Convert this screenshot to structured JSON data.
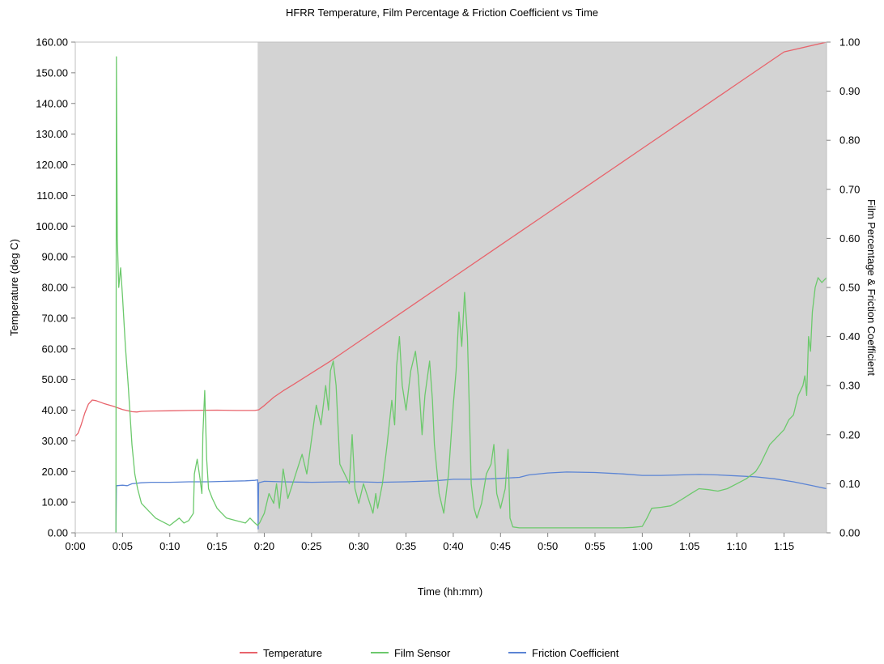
{
  "chart_data": {
    "type": "line",
    "title": "HFRR Temperature, Film Percentage & Friction Coefficient vs Time",
    "xlabel": "Time (hh:mm)",
    "ylabel_left": "Temperature (deg C)",
    "ylabel_right": "Film Percentage & Friction Coefficient",
    "x_unit": "minutes",
    "xlim": [
      0,
      79.5
    ],
    "ylim_left": [
      0,
      160
    ],
    "ylim_right": [
      0,
      1
    ],
    "x_tick_labels": [
      "0:00",
      "0:05",
      "0:10",
      "0:15",
      "0:20",
      "0:25",
      "0:30",
      "0:35",
      "0:40",
      "0:45",
      "0:50",
      "0:55",
      "1:00",
      "1:05",
      "1:10",
      "1:15"
    ],
    "y_left_tick_labels": [
      "0.00",
      "10.00",
      "20.00",
      "30.00",
      "40.00",
      "50.00",
      "60.00",
      "70.00",
      "80.00",
      "90.00",
      "100.00",
      "110.00",
      "120.00",
      "130.00",
      "140.00",
      "150.00",
      "160.00"
    ],
    "y_right_tick_labels": [
      "0.00",
      "0.10",
      "0.20",
      "0.30",
      "0.40",
      "0.50",
      "0.60",
      "0.70",
      "0.80",
      "0.90",
      "1.00"
    ],
    "shaded_region": {
      "x_start": 19.3,
      "x_end": 79.5,
      "color": "#d3d3d3"
    },
    "grid": false,
    "legend_position": "bottom",
    "series": [
      {
        "name": "Temperature",
        "axis": "left",
        "color": "#e8636b",
        "points": [
          [
            0,
            31.5
          ],
          [
            0.3,
            32.5
          ],
          [
            0.6,
            35
          ],
          [
            1,
            39
          ],
          [
            1.4,
            42
          ],
          [
            1.8,
            43.3
          ],
          [
            2.2,
            43.1
          ],
          [
            3,
            42.2
          ],
          [
            4,
            41.3
          ],
          [
            5,
            40.2
          ],
          [
            6,
            39.5
          ],
          [
            6.5,
            39.4
          ],
          [
            7,
            39.6
          ],
          [
            8,
            39.7
          ],
          [
            10,
            39.8
          ],
          [
            12,
            39.9
          ],
          [
            15,
            40
          ],
          [
            17,
            39.9
          ],
          [
            19,
            39.9
          ],
          [
            19.4,
            40.1
          ],
          [
            20,
            41.5
          ],
          [
            21,
            44.2
          ],
          [
            22,
            46.3
          ],
          [
            23,
            48.2
          ],
          [
            25,
            52.1
          ],
          [
            27,
            56
          ],
          [
            30,
            62.3
          ],
          [
            35,
            72.8
          ],
          [
            40,
            83.3
          ],
          [
            45,
            93.8
          ],
          [
            50,
            104.3
          ],
          [
            55,
            114.8
          ],
          [
            60,
            125.3
          ],
          [
            65,
            135.8
          ],
          [
            70,
            146.3
          ],
          [
            75,
            156.8
          ],
          [
            79.5,
            160
          ]
        ]
      },
      {
        "name": "Film Sensor",
        "axis": "right",
        "color": "#6cc96c",
        "points": [
          [
            4.3,
            0
          ],
          [
            4.35,
            0.97
          ],
          [
            4.45,
            0.6
          ],
          [
            4.6,
            0.5
          ],
          [
            4.8,
            0.54
          ],
          [
            5,
            0.48
          ],
          [
            5.3,
            0.38
          ],
          [
            5.6,
            0.3
          ],
          [
            6,
            0.18
          ],
          [
            6.3,
            0.12
          ],
          [
            6.6,
            0.09
          ],
          [
            7,
            0.06
          ],
          [
            7.5,
            0.05
          ],
          [
            8,
            0.04
          ],
          [
            8.5,
            0.03
          ],
          [
            9,
            0.025
          ],
          [
            10,
            0.015
          ],
          [
            11,
            0.03
          ],
          [
            11.5,
            0.02
          ],
          [
            12,
            0.025
          ],
          [
            12.5,
            0.04
          ],
          [
            12.6,
            0.12
          ],
          [
            12.9,
            0.15
          ],
          [
            13.2,
            0.11
          ],
          [
            13.4,
            0.08
          ],
          [
            13.5,
            0.2
          ],
          [
            13.7,
            0.29
          ],
          [
            13.9,
            0.15
          ],
          [
            14.1,
            0.09
          ],
          [
            14.5,
            0.07
          ],
          [
            15,
            0.05
          ],
          [
            15.5,
            0.04
          ],
          [
            16,
            0.03
          ],
          [
            17,
            0.025
          ],
          [
            18,
            0.02
          ],
          [
            18.5,
            0.03
          ],
          [
            19,
            0.02
          ],
          [
            19.3,
            0.015
          ],
          [
            19.5,
            0.02
          ],
          [
            20,
            0.04
          ],
          [
            20.5,
            0.08
          ],
          [
            21,
            0.06
          ],
          [
            21.3,
            0.1
          ],
          [
            21.6,
            0.05
          ],
          [
            22,
            0.13
          ],
          [
            22.5,
            0.07
          ],
          [
            23,
            0.1
          ],
          [
            23.5,
            0.13
          ],
          [
            24,
            0.16
          ],
          [
            24.5,
            0.12
          ],
          [
            25,
            0.19
          ],
          [
            25.5,
            0.26
          ],
          [
            26,
            0.22
          ],
          [
            26.5,
            0.3
          ],
          [
            26.8,
            0.25
          ],
          [
            27,
            0.33
          ],
          [
            27.3,
            0.35
          ],
          [
            27.6,
            0.3
          ],
          [
            28,
            0.14
          ],
          [
            28.5,
            0.12
          ],
          [
            29,
            0.1
          ],
          [
            29.3,
            0.2
          ],
          [
            29.6,
            0.09
          ],
          [
            30,
            0.06
          ],
          [
            30.5,
            0.1
          ],
          [
            31,
            0.07
          ],
          [
            31.5,
            0.04
          ],
          [
            31.8,
            0.08
          ],
          [
            32,
            0.05
          ],
          [
            32.5,
            0.1
          ],
          [
            33,
            0.18
          ],
          [
            33.5,
            0.27
          ],
          [
            33.8,
            0.22
          ],
          [
            34,
            0.34
          ],
          [
            34.3,
            0.4
          ],
          [
            34.6,
            0.3
          ],
          [
            35,
            0.25
          ],
          [
            35.5,
            0.33
          ],
          [
            36,
            0.37
          ],
          [
            36.3,
            0.32
          ],
          [
            36.7,
            0.2
          ],
          [
            37,
            0.28
          ],
          [
            37.5,
            0.35
          ],
          [
            37.8,
            0.27
          ],
          [
            38,
            0.18
          ],
          [
            38.5,
            0.08
          ],
          [
            39,
            0.04
          ],
          [
            39.5,
            0.12
          ],
          [
            40,
            0.26
          ],
          [
            40.3,
            0.33
          ],
          [
            40.6,
            0.45
          ],
          [
            40.9,
            0.38
          ],
          [
            41.2,
            0.49
          ],
          [
            41.5,
            0.4
          ],
          [
            41.7,
            0.25
          ],
          [
            41.9,
            0.1
          ],
          [
            42.2,
            0.05
          ],
          [
            42.5,
            0.03
          ],
          [
            43,
            0.06
          ],
          [
            43.5,
            0.12
          ],
          [
            44,
            0.14
          ],
          [
            44.3,
            0.18
          ],
          [
            44.6,
            0.08
          ],
          [
            45,
            0.05
          ],
          [
            45.5,
            0.09
          ],
          [
            45.8,
            0.17
          ],
          [
            46,
            0.03
          ],
          [
            46.3,
            0.012
          ],
          [
            47,
            0.01
          ],
          [
            50,
            0.01
          ],
          [
            55,
            0.01
          ],
          [
            58,
            0.01
          ],
          [
            59,
            0.011
          ],
          [
            60,
            0.013
          ],
          [
            60.5,
            0.03
          ],
          [
            61,
            0.05
          ],
          [
            62,
            0.052
          ],
          [
            63,
            0.055
          ],
          [
            63.5,
            0.06
          ],
          [
            64,
            0.066
          ],
          [
            64.5,
            0.072
          ],
          [
            65,
            0.078
          ],
          [
            65.5,
            0.084
          ],
          [
            66,
            0.09
          ],
          [
            67,
            0.088
          ],
          [
            68,
            0.085
          ],
          [
            69,
            0.09
          ],
          [
            70,
            0.1
          ],
          [
            71,
            0.11
          ],
          [
            72,
            0.125
          ],
          [
            72.5,
            0.14
          ],
          [
            73,
            0.16
          ],
          [
            73.5,
            0.18
          ],
          [
            74,
            0.19
          ],
          [
            74.5,
            0.2
          ],
          [
            75,
            0.21
          ],
          [
            75.5,
            0.23
          ],
          [
            76,
            0.24
          ],
          [
            76.5,
            0.28
          ],
          [
            77,
            0.3
          ],
          [
            77.2,
            0.32
          ],
          [
            77.4,
            0.28
          ],
          [
            77.6,
            0.4
          ],
          [
            77.8,
            0.37
          ],
          [
            78,
            0.45
          ],
          [
            78.3,
            0.5
          ],
          [
            78.6,
            0.52
          ],
          [
            79,
            0.51
          ],
          [
            79.5,
            0.52
          ]
        ]
      },
      {
        "name": "Friction Coefficient",
        "axis": "right",
        "color": "#5b84d4",
        "points": [
          [
            4.3,
            0
          ],
          [
            4.35,
            0.096
          ],
          [
            5,
            0.097
          ],
          [
            5.5,
            0.096
          ],
          [
            6,
            0.1
          ],
          [
            7,
            0.102
          ],
          [
            8,
            0.103
          ],
          [
            10,
            0.103
          ],
          [
            12,
            0.104
          ],
          [
            14,
            0.104
          ],
          [
            16,
            0.105
          ],
          [
            18,
            0.106
          ],
          [
            19,
            0.107
          ],
          [
            19.3,
            0.108
          ],
          [
            19.35,
            0.008
          ],
          [
            19.4,
            0.102
          ],
          [
            20,
            0.105
          ],
          [
            22,
            0.104
          ],
          [
            25,
            0.103
          ],
          [
            28,
            0.104
          ],
          [
            30,
            0.104
          ],
          [
            32,
            0.103
          ],
          [
            35,
            0.104
          ],
          [
            38,
            0.106
          ],
          [
            40,
            0.109
          ],
          [
            42,
            0.109
          ],
          [
            44,
            0.11
          ],
          [
            46,
            0.112
          ],
          [
            47,
            0.113
          ],
          [
            48,
            0.118
          ],
          [
            50,
            0.122
          ],
          [
            52,
            0.124
          ],
          [
            55,
            0.123
          ],
          [
            58,
            0.12
          ],
          [
            60,
            0.117
          ],
          [
            62,
            0.117
          ],
          [
            64,
            0.118
          ],
          [
            66,
            0.119
          ],
          [
            68,
            0.118
          ],
          [
            70,
            0.116
          ],
          [
            72,
            0.114
          ],
          [
            74,
            0.11
          ],
          [
            76,
            0.104
          ],
          [
            78,
            0.096
          ],
          [
            79.5,
            0.09
          ]
        ]
      }
    ]
  }
}
